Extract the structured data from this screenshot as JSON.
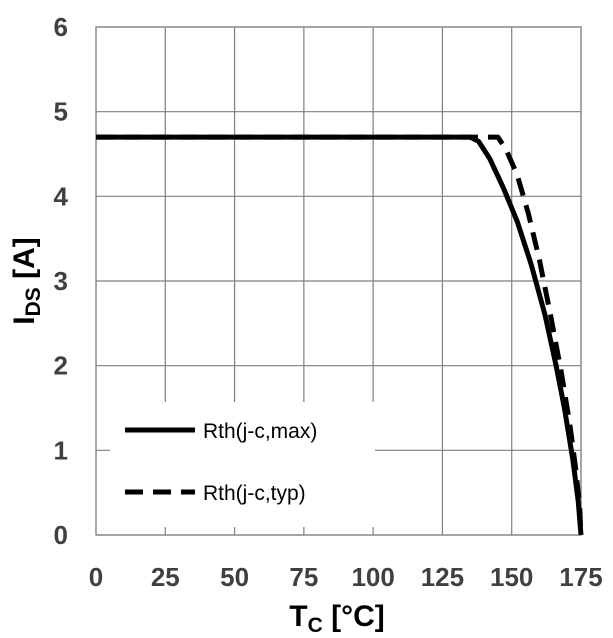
{
  "chart_data": {
    "type": "line",
    "xlabel": {
      "main": "T",
      "sub": "C",
      "unit": " [°C]"
    },
    "ylabel": {
      "main": "I",
      "sub": "DS",
      "unit": " [A]"
    },
    "xlim": [
      0,
      175
    ],
    "ylim": [
      0,
      6
    ],
    "xticks": [
      0,
      25,
      50,
      75,
      100,
      125,
      150,
      175
    ],
    "yticks": [
      0,
      1,
      2,
      3,
      4,
      5,
      6
    ],
    "grid": true,
    "legend_position": "bottom-left",
    "series": [
      {
        "name": "Rth(j-c,max)",
        "style": "solid",
        "color": "#000000",
        "x": [
          0,
          135,
          138,
          142,
          147,
          152,
          157,
          162,
          166,
          169,
          172,
          174,
          175
        ],
        "y": [
          4.7,
          4.7,
          4.65,
          4.45,
          4.1,
          3.7,
          3.2,
          2.6,
          2.0,
          1.5,
          0.9,
          0.4,
          0
        ]
      },
      {
        "name": "Rth(j-c,typ)",
        "style": "dashed",
        "color": "#000000",
        "x": [
          0,
          145,
          148,
          152,
          156,
          160,
          164,
          168,
          171,
          173,
          174.5,
          175
        ],
        "y": [
          4.7,
          4.7,
          4.55,
          4.25,
          3.8,
          3.25,
          2.6,
          1.9,
          1.3,
          0.8,
          0.35,
          0
        ]
      }
    ]
  }
}
